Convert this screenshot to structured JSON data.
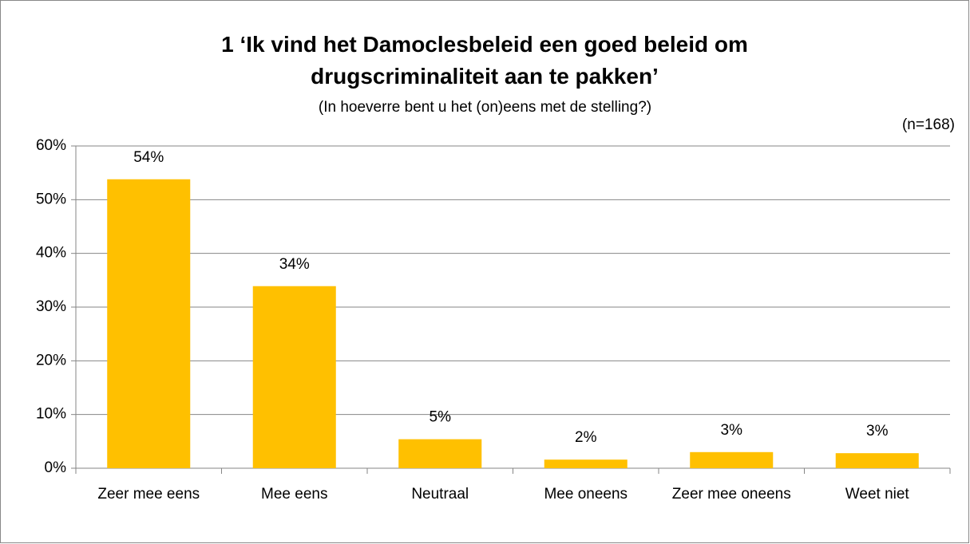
{
  "chart_data": {
    "type": "bar",
    "title": "1 ‘Ik vind het Damoclesbeleid een goed beleid om drugscriminaliteit aan te pakken’",
    "subtitle": "(In hoeverre bent u het (on)eens met de stelling?)",
    "annotation": "(n=168)",
    "categories": [
      "Zeer mee eens",
      "Mee eens",
      "Neutraal",
      "Mee oneens",
      "Zeer mee oneens",
      "Weet niet"
    ],
    "values": [
      53.8,
      33.9,
      5.4,
      1.6,
      3.0,
      2.8
    ],
    "value_labels": [
      "54%",
      "34%",
      "5%",
      "2%",
      "3%",
      "3%"
    ],
    "color": "#ffc000",
    "ylim": [
      0,
      60
    ],
    "yticks": [
      {
        "value": 0,
        "label": "0%"
      },
      {
        "value": 10,
        "label": "10%"
      },
      {
        "value": 20,
        "label": "20%"
      },
      {
        "value": 30,
        "label": "30%"
      },
      {
        "value": 40,
        "label": "40%"
      },
      {
        "value": 50,
        "label": "50%"
      },
      {
        "value": 60,
        "label": "60%"
      }
    ],
    "grid": true
  }
}
